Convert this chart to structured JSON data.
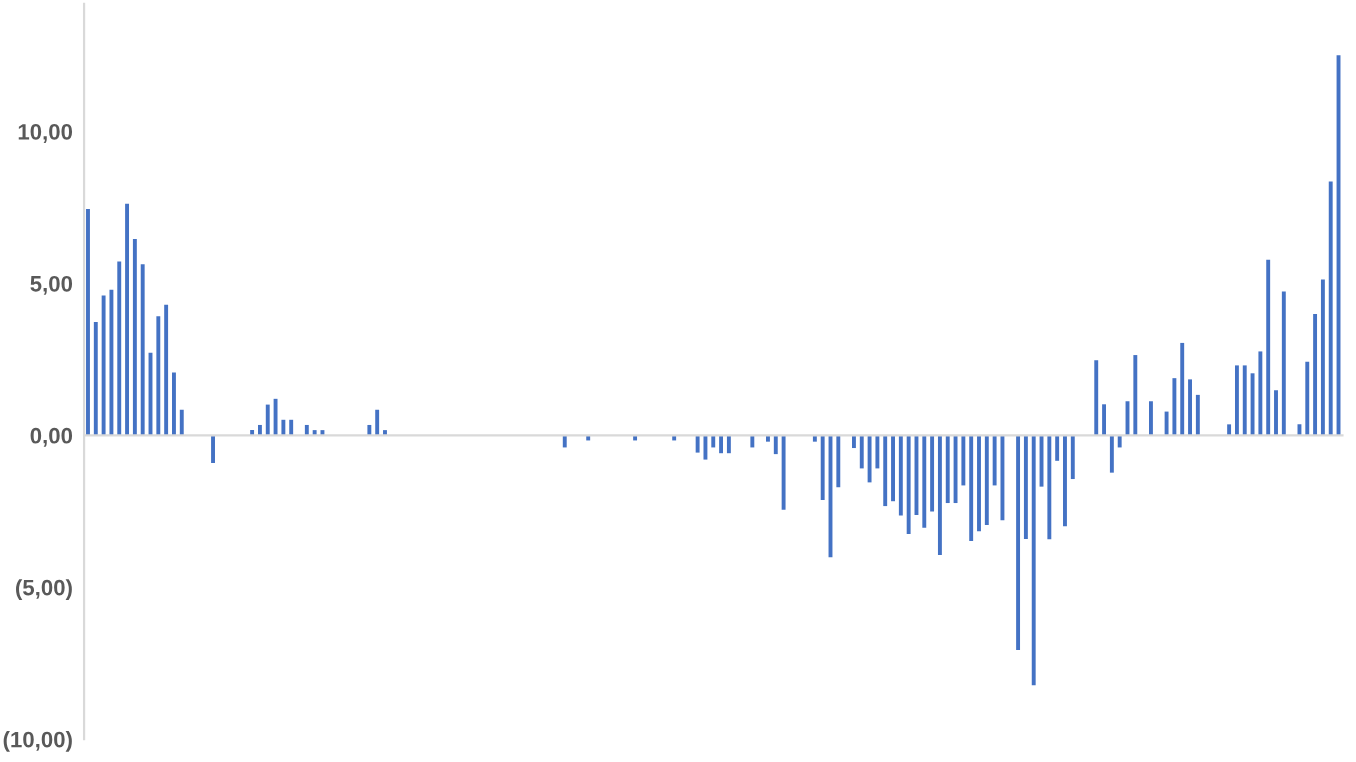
{
  "chart_data": {
    "type": "bar",
    "color": "#4472c4",
    "categories": [
      null,
      null,
      null,
      null,
      null,
      null,
      null,
      null,
      null,
      null,
      null,
      null,
      null,
      null,
      null,
      null,
      null,
      null,
      null,
      null,
      null,
      null,
      null,
      null,
      null,
      null,
      null,
      null,
      null,
      null,
      null,
      null,
      null,
      null,
      null,
      null,
      null,
      null,
      null,
      null,
      null,
      null,
      null,
      null,
      null,
      null,
      null,
      null,
      null,
      null,
      null,
      null,
      null,
      null,
      null,
      null,
      null,
      null,
      null,
      null,
      null,
      null,
      null,
      null,
      null,
      null,
      null,
      null,
      null,
      null,
      null,
      null,
      null,
      null,
      null,
      null,
      null,
      null,
      null,
      null,
      null,
      null,
      null,
      null,
      null,
      null,
      null,
      null,
      null,
      null,
      null,
      null,
      null,
      null,
      null,
      null,
      null,
      null,
      null,
      null,
      null,
      null,
      null,
      null,
      null,
      null,
      null,
      null,
      null,
      null,
      null,
      null,
      null,
      null,
      null,
      null,
      null,
      null,
      null,
      null,
      null,
      null,
      null,
      null,
      null,
      null,
      null,
      null,
      null,
      null,
      null,
      null,
      null,
      null,
      null,
      null,
      null,
      null,
      null,
      null,
      null,
      null,
      null,
      null,
      null,
      null,
      null,
      null,
      null,
      null,
      null,
      null,
      null,
      null,
      null,
      null,
      null,
      null,
      null,
      null,
      null
    ],
    "values": [
      7.45,
      3.73,
      4.6,
      4.79,
      5.72,
      7.62,
      6.46,
      5.63,
      2.72,
      3.92,
      4.3,
      2.07,
      0.84,
      null,
      null,
      null,
      -0.91,
      null,
      null,
      null,
      null,
      0.17,
      0.34,
      1.01,
      1.2,
      0.51,
      0.51,
      null,
      0.34,
      0.17,
      0.17,
      null,
      null,
      null,
      null,
      null,
      0.34,
      0.84,
      0.17,
      null,
      null,
      null,
      null,
      null,
      null,
      null,
      null,
      null,
      null,
      null,
      null,
      null,
      null,
      null,
      null,
      null,
      null,
      null,
      null,
      null,
      null,
      -0.4,
      null,
      null,
      -0.17,
      null,
      null,
      null,
      null,
      null,
      -0.17,
      null,
      null,
      null,
      null,
      -0.17,
      null,
      null,
      -0.57,
      -0.8,
      -0.4,
      -0.59,
      -0.59,
      null,
      null,
      -0.4,
      null,
      -0.21,
      -0.62,
      -2.45,
      null,
      null,
      null,
      -0.21,
      -2.13,
      -4.01,
      -1.71,
      null,
      -0.42,
      -1.09,
      -1.55,
      -1.09,
      -2.33,
      -2.17,
      -2.64,
      -3.25,
      -2.62,
      -3.04,
      -2.51,
      -3.94,
      -2.23,
      -2.23,
      -1.65,
      -3.48,
      -3.16,
      -2.95,
      -1.65,
      -2.8,
      null,
      -7.07,
      -3.41,
      -8.23,
      -1.69,
      -3.42,
      -0.84,
      -2.99,
      -1.44,
      null,
      null,
      2.47,
      1.02,
      -1.23,
      -0.4,
      1.12,
      2.64,
      null,
      1.12,
      null,
      0.78,
      1.88,
      3.04,
      1.84,
      1.33,
      null,
      null,
      null,
      0.36,
      2.3,
      2.3,
      2.04,
      2.76,
      5.78,
      1.48,
      4.73,
      null,
      0.36,
      2.42,
      3.99,
      5.13,
      8.35,
      12.51
    ],
    "ylim": [
      -10,
      14.2
    ],
    "yticks": [
      {
        "value": -10,
        "label": "(10,00)"
      },
      {
        "value": -5,
        "label": "(5,00)"
      },
      {
        "value": 0,
        "label": "0,00"
      },
      {
        "value": 5,
        "label": "5,00"
      },
      {
        "value": 10,
        "label": "10,00"
      }
    ],
    "tick_labels": "y"
  }
}
